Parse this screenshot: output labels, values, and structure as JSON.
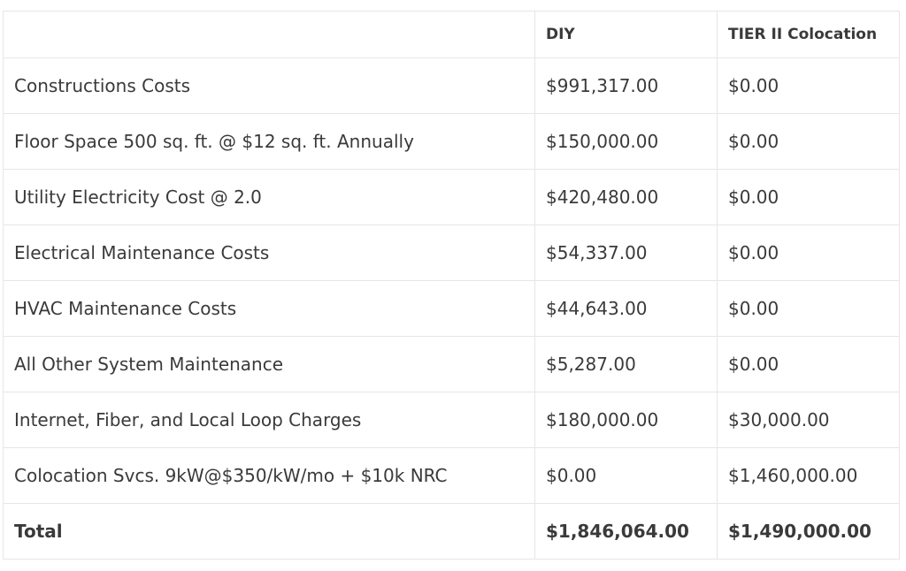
{
  "table": {
    "header": [
      "",
      "DIY",
      "TIER II Colocation"
    ],
    "rows": [
      [
        "Constructions Costs",
        "$991,317.00",
        "$0.00"
      ],
      [
        "Floor Space 500 sq. ft. @ $12 sq. ft. Annually",
        "$150,000.00",
        "$0.00"
      ],
      [
        "Utility Electricity Cost @ 2.0",
        "$420,480.00",
        "$0.00"
      ],
      [
        "Electrical Maintenance Costs",
        "$54,337.00",
        "$0.00"
      ],
      [
        "HVAC Maintenance Costs",
        "$44,643.00",
        "$0.00"
      ],
      [
        "All Other System Maintenance",
        "$5,287.00",
        "$0.00"
      ],
      [
        "Internet, Fiber, and Local Loop Charges",
        "$180,000.00",
        "$30,000.00"
      ],
      [
        "Colocation Svcs. 9kW@$350/kW/mo + $10k NRC",
        "$0.00",
        "$1,460,000.00"
      ]
    ],
    "total": [
      "Total",
      "$1,846,064.00",
      "$1,490,000.00"
    ]
  }
}
